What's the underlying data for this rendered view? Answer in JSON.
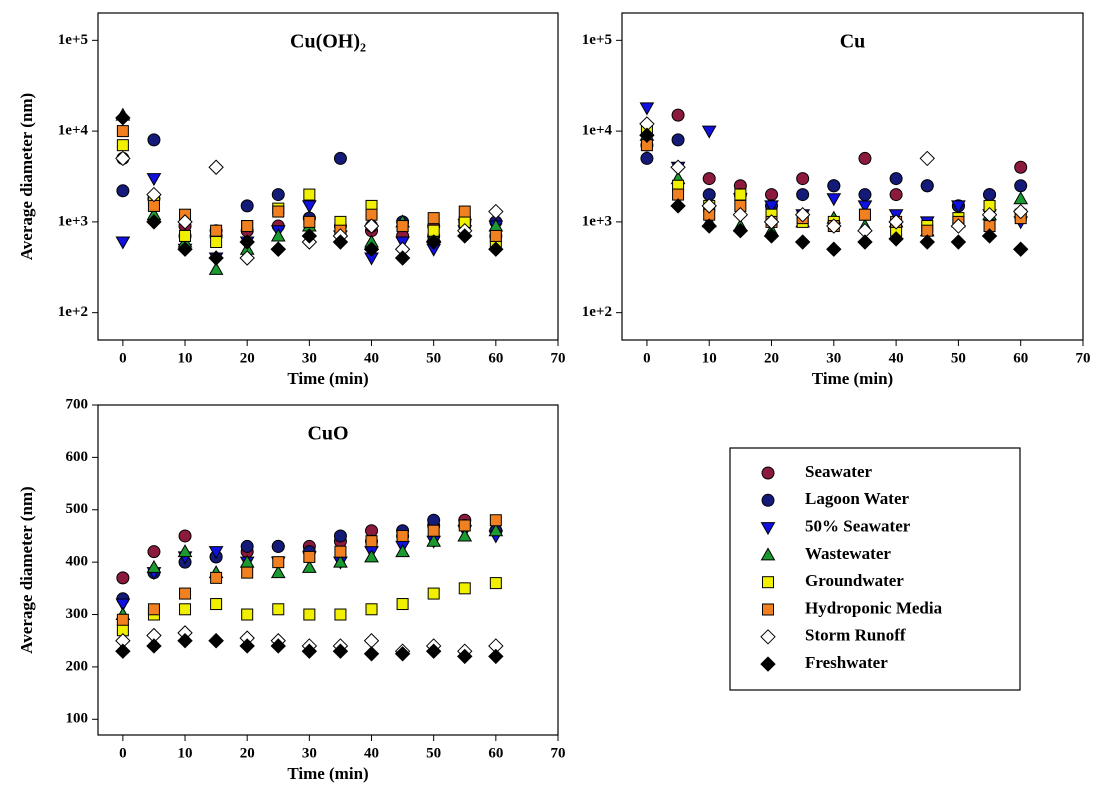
{
  "chart_data": [
    {
      "type": "scatter",
      "title": "Cu(OH)₂",
      "x_label": "Time (min)",
      "y_label": "Average diameter (nm)",
      "ylog": true,
      "x": [
        0,
        5,
        10,
        15,
        20,
        25,
        30,
        35,
        40,
        45,
        50,
        55,
        60
      ],
      "xlim": [
        -4,
        70
      ],
      "xticks": [
        0,
        10,
        20,
        30,
        40,
        50,
        60,
        70
      ],
      "ylim": [
        50,
        200000
      ],
      "yticks": [
        {
          "value": 100,
          "label": "1e+2"
        },
        {
          "value": 1000,
          "label": "1e+3"
        },
        {
          "value": 10000,
          "label": "1e+4"
        },
        {
          "value": 100000,
          "label": "1e+5"
        }
      ],
      "series": [
        {
          "name": "Seawater",
          "color": "#8b1a3c",
          "marker": "circle",
          "values": [
            5000,
            1800,
            900,
            700,
            800,
            900,
            1100,
            900,
            800,
            700,
            900,
            1000,
            700
          ]
        },
        {
          "name": "Lagoon Water",
          "color": "#141a78",
          "marker": "circle",
          "values": [
            2200,
            8000,
            700,
            800,
            1500,
            2000,
            1100,
            5000,
            900,
            1000,
            700,
            900,
            1000
          ]
        },
        {
          "name": "50% Seawater",
          "color": "#1010e0",
          "marker": "triangle-down",
          "values": [
            600,
            3000,
            500,
            400,
            600,
            800,
            1500,
            700,
            400,
            600,
            500,
            800,
            900
          ]
        },
        {
          "name": "Wastewater",
          "color": "#1a9a30",
          "marker": "triangle-up",
          "values": [
            15000,
            1200,
            600,
            300,
            500,
            700,
            900,
            800,
            600,
            1000,
            700,
            1200,
            900
          ]
        },
        {
          "name": "Groundwater",
          "color": "#f0f000",
          "marker": "square",
          "values": [
            7000,
            1800,
            700,
            600,
            900,
            1400,
            2000,
            1000,
            1500,
            900,
            800,
            1000,
            600
          ]
        },
        {
          "name": "Hydroponic Media",
          "color": "#f08020",
          "marker": "square",
          "values": [
            10000,
            1500,
            1200,
            800,
            900,
            1300,
            1000,
            800,
            1200,
            900,
            1100,
            1300,
            700
          ]
        },
        {
          "name": "Storm Runoff",
          "color": "#ffffff",
          "marker": "diamond",
          "values": [
            5000,
            2000,
            1000,
            4000,
            400,
            500,
            600,
            700,
            900,
            500,
            600,
            800,
            1300
          ]
        },
        {
          "name": "Freshwater",
          "color": "#000000",
          "marker": "diamond",
          "values": [
            14000,
            1000,
            500,
            400,
            600,
            500,
            700,
            600,
            500,
            400,
            600,
            700,
            500
          ]
        }
      ]
    },
    {
      "type": "scatter",
      "title": "Cu",
      "x_label": "Time (min)",
      "ylog": true,
      "x": [
        0,
        5,
        10,
        15,
        20,
        25,
        30,
        35,
        40,
        45,
        50,
        55,
        60
      ],
      "xlim": [
        -4,
        70
      ],
      "xticks": [
        0,
        10,
        20,
        30,
        40,
        50,
        60,
        70
      ],
      "ylim": [
        50,
        200000
      ],
      "yticks": [
        {
          "value": 100,
          "label": "1e+2"
        },
        {
          "value": 1000,
          "label": "1e+3"
        },
        {
          "value": 10000,
          "label": "1e+4"
        },
        {
          "value": 100000,
          "label": "1e+5"
        }
      ],
      "series": [
        {
          "name": "Seawater",
          "color": "#8b1a3c",
          "marker": "circle",
          "values": [
            7000,
            15000,
            3000,
            2500,
            2000,
            3000,
            2500,
            5000,
            2000,
            2500,
            1500,
            2000,
            4000
          ]
        },
        {
          "name": "Lagoon Water",
          "color": "#141a78",
          "marker": "circle",
          "values": [
            5000,
            8000,
            2000,
            2000,
            1500,
            2000,
            2500,
            2000,
            3000,
            2500,
            1500,
            2000,
            2500
          ]
        },
        {
          "name": "50% Seawater",
          "color": "#1010e0",
          "marker": "triangle-down",
          "values": [
            18000,
            4000,
            10000,
            1800,
            1500,
            1200,
            1800,
            1500,
            1200,
            1000,
            1500,
            1200,
            1000
          ]
        },
        {
          "name": "Wastewater",
          "color": "#1a9a30",
          "marker": "triangle-up",
          "values": [
            9000,
            3000,
            1000,
            900,
            800,
            1000,
            1100,
            900,
            1000,
            800,
            1000,
            1200,
            1800
          ]
        },
        {
          "name": "Groundwater",
          "color": "#f0f000",
          "marker": "square",
          "values": [
            10000,
            2500,
            1500,
            2000,
            1200,
            1000,
            1000,
            1200,
            800,
            900,
            1100,
            1500,
            1200
          ]
        },
        {
          "name": "Hydroponic Media",
          "color": "#f08020",
          "marker": "square",
          "values": [
            7000,
            2000,
            1200,
            1500,
            1000,
            1100,
            900,
            1200,
            1000,
            800,
            1000,
            900,
            1100
          ]
        },
        {
          "name": "Storm Runoff",
          "color": "#ffffff",
          "marker": "diamond",
          "values": [
            12000,
            4000,
            1500,
            1200,
            1000,
            1200,
            900,
            800,
            1000,
            5000,
            900,
            1200,
            1300
          ]
        },
        {
          "name": "Freshwater",
          "color": "#000000",
          "marker": "diamond",
          "values": [
            9000,
            1500,
            900,
            800,
            700,
            600,
            500,
            600,
            650,
            600,
            600,
            700,
            500
          ]
        }
      ]
    },
    {
      "type": "scatter",
      "title": "CuO",
      "x_label": "Time (min)",
      "y_label": "Average diameter (nm)",
      "ylog": false,
      "x": [
        0,
        5,
        10,
        15,
        20,
        25,
        30,
        35,
        40,
        45,
        50,
        55,
        60
      ],
      "xlim": [
        -4,
        70
      ],
      "xticks": [
        0,
        10,
        20,
        30,
        40,
        50,
        60,
        70
      ],
      "ylim": [
        70,
        700
      ],
      "yticks": [
        100,
        200,
        300,
        400,
        500,
        600,
        700
      ],
      "series": [
        {
          "name": "Seawater",
          "color": "#8b1a3c",
          "marker": "circle",
          "values": [
            370,
            420,
            450,
            410,
            420,
            430,
            430,
            440,
            460,
            450,
            470,
            480,
            460
          ]
        },
        {
          "name": "Lagoon Water",
          "color": "#141a78",
          "marker": "circle",
          "values": [
            330,
            380,
            400,
            410,
            430,
            430,
            420,
            450,
            440,
            460,
            480,
            470,
            460
          ]
        },
        {
          "name": "50% Seawater",
          "color": "#1010e0",
          "marker": "triangle-down",
          "values": [
            320,
            380,
            410,
            420,
            400,
            400,
            410,
            400,
            420,
            430,
            440,
            460,
            450
          ]
        },
        {
          "name": "Wastewater",
          "color": "#1a9a30",
          "marker": "triangle-up",
          "values": [
            300,
            390,
            420,
            380,
            400,
            380,
            390,
            400,
            410,
            420,
            440,
            450,
            460
          ]
        },
        {
          "name": "Groundwater",
          "color": "#f0f000",
          "marker": "square",
          "values": [
            270,
            300,
            310,
            320,
            300,
            310,
            300,
            300,
            310,
            320,
            340,
            350,
            360
          ]
        },
        {
          "name": "Hydroponic Media",
          "color": "#f08020",
          "marker": "square",
          "values": [
            290,
            310,
            340,
            370,
            380,
            400,
            410,
            420,
            440,
            450,
            460,
            470,
            480
          ]
        },
        {
          "name": "Storm Runoff",
          "color": "#ffffff",
          "marker": "diamond",
          "values": [
            250,
            260,
            265,
            250,
            255,
            250,
            240,
            240,
            250,
            230,
            240,
            230,
            240
          ]
        },
        {
          "name": "Freshwater",
          "color": "#000000",
          "marker": "diamond",
          "values": [
            230,
            240,
            250,
            250,
            240,
            240,
            230,
            230,
            225,
            225,
            230,
            220,
            220
          ]
        }
      ]
    }
  ]
}
